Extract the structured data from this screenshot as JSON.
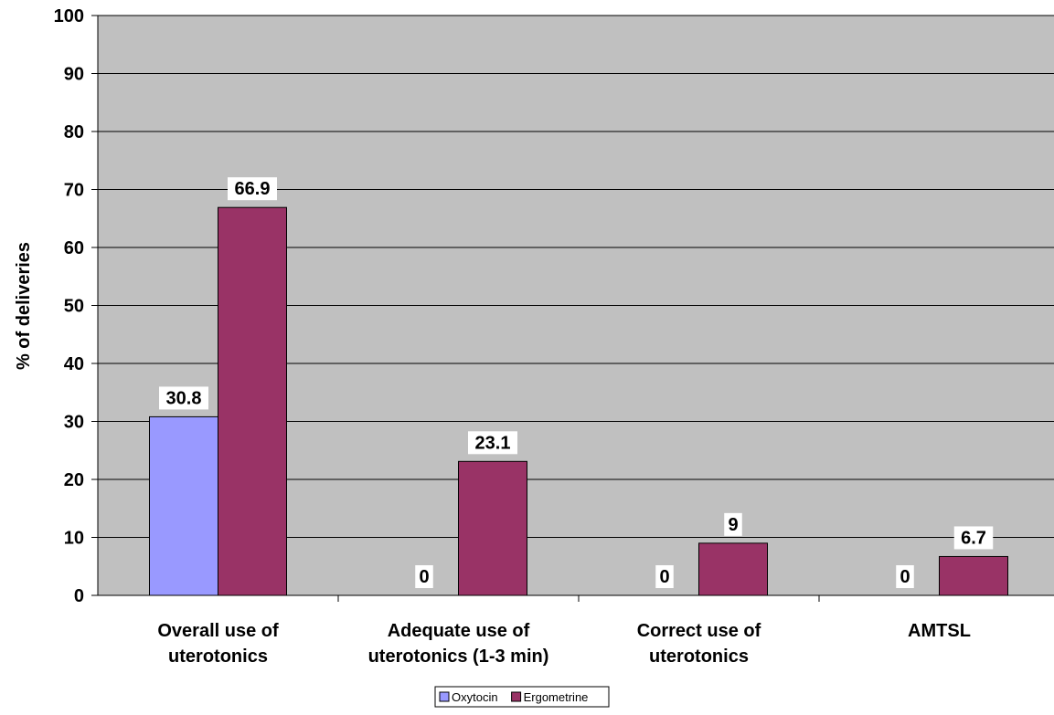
{
  "chart_data": {
    "type": "bar",
    "categories": [
      [
        "Overall use of",
        "uterotonics"
      ],
      [
        "Adequate use of",
        "uterotonics (1-3 min)"
      ],
      [
        "Correct use of",
        "uterotonics"
      ],
      [
        "AMTSL"
      ]
    ],
    "series": [
      {
        "name": "Oxytocin",
        "values": [
          30.8,
          0,
          0,
          0
        ],
        "labels": [
          "30.8",
          "0",
          "0",
          "0"
        ],
        "color": "#9999ff"
      },
      {
        "name": "Ergometrine",
        "values": [
          66.9,
          23.1,
          9,
          6.7
        ],
        "labels": [
          "66.9",
          "23.1",
          "9",
          "6.7"
        ],
        "color": "#993366"
      }
    ],
    "ylabel": "% of deliveries",
    "xlabel": "",
    "ylim": [
      0,
      100
    ],
    "yticks": [
      0,
      10,
      20,
      30,
      40,
      50,
      60,
      70,
      80,
      90,
      100
    ],
    "grid": true,
    "plot_background": "#c0c0c0",
    "legend_position": "bottom"
  }
}
